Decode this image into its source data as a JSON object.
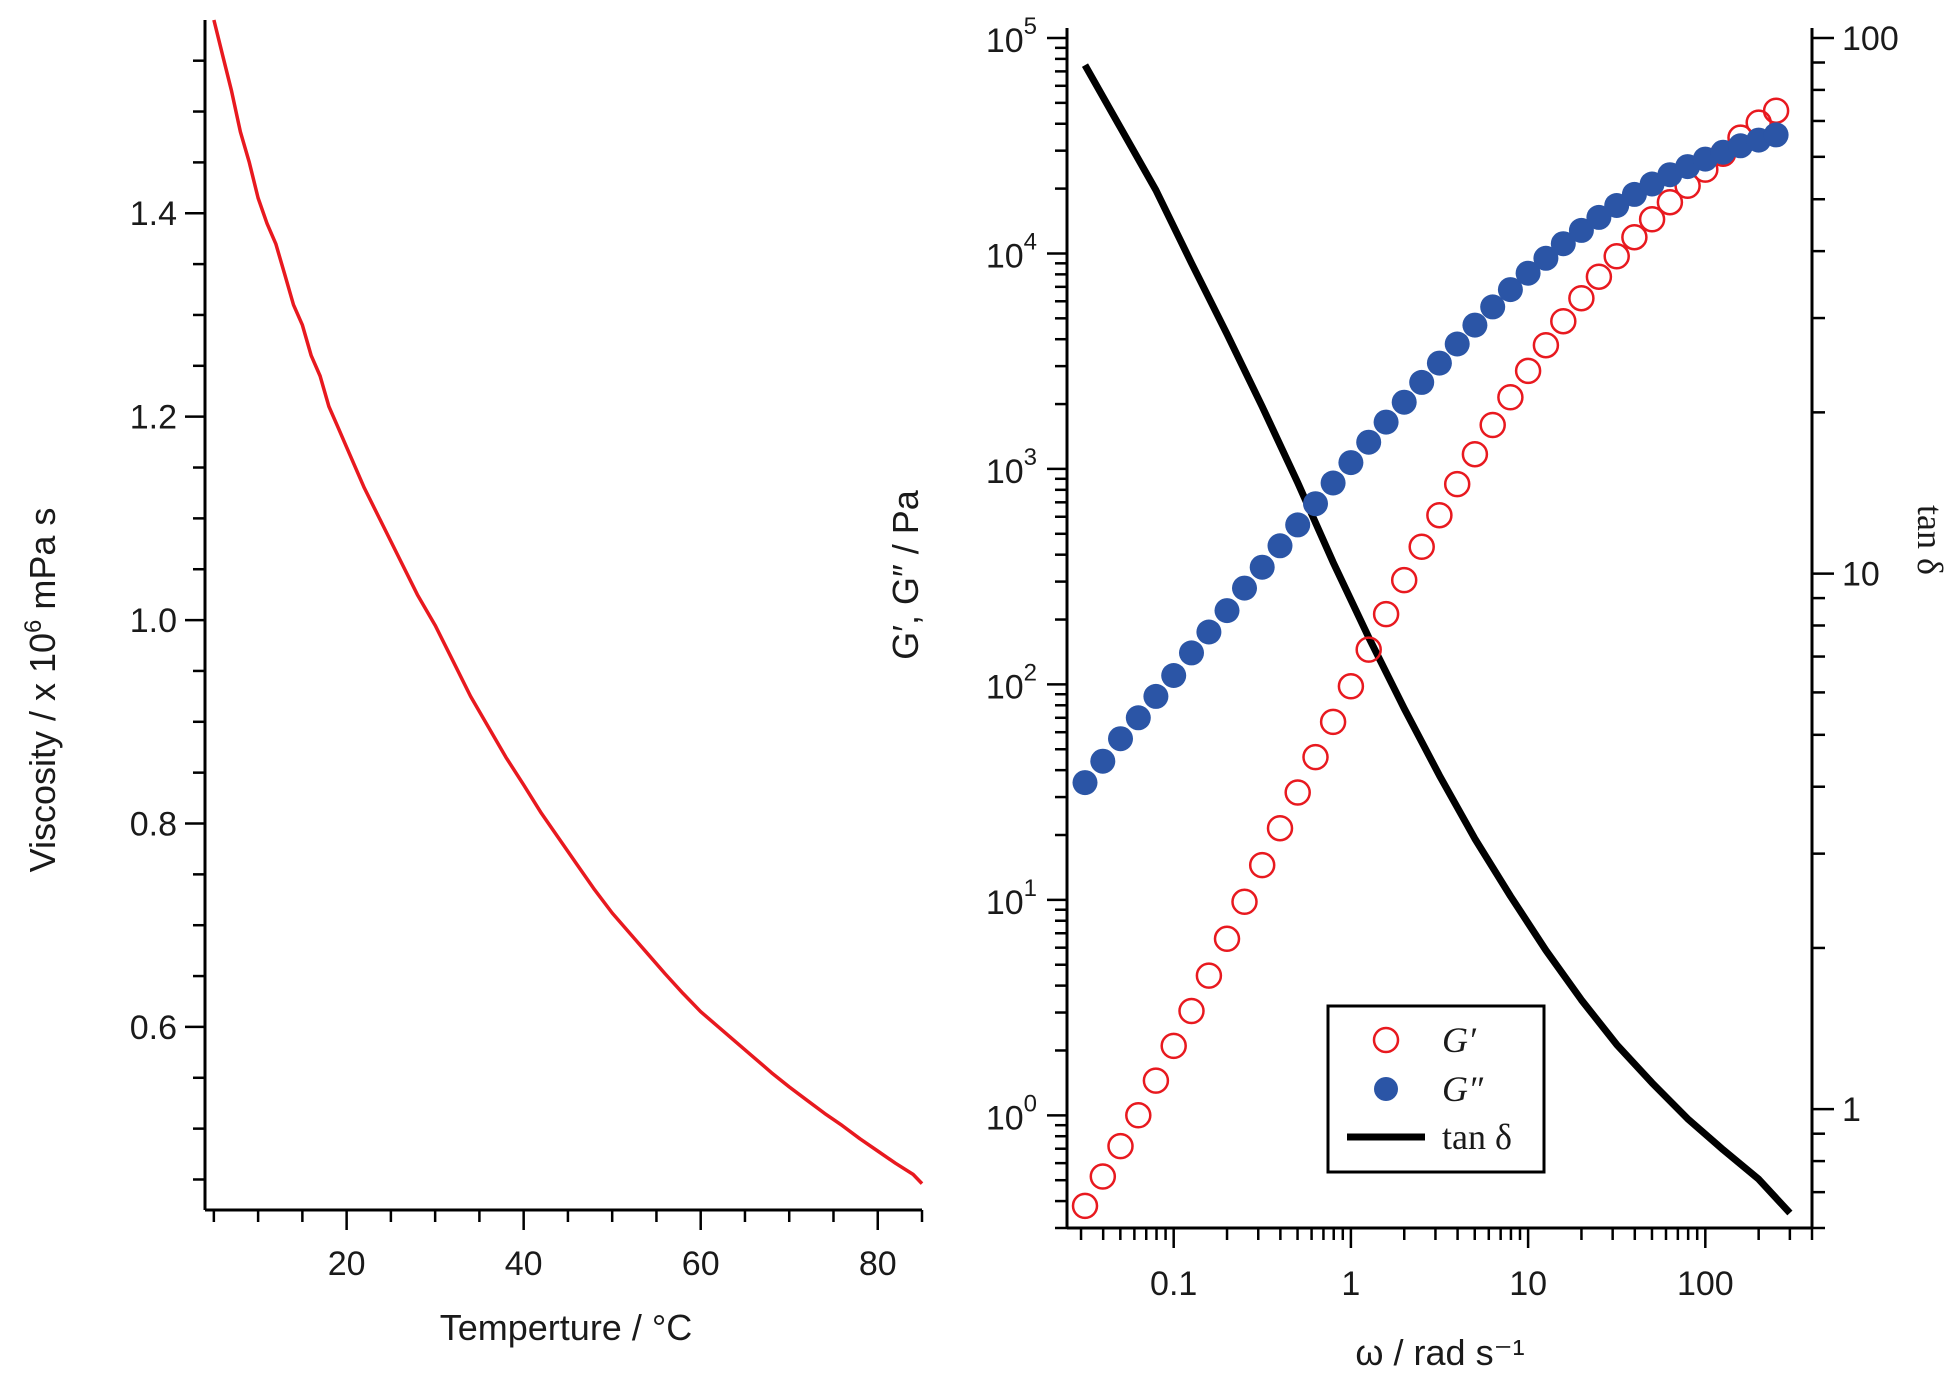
{
  "chart_data": [
    {
      "type": "line",
      "xlabel": "Temperture / °C",
      "ylabel_parts": [
        "Viscosity / x 10",
        "6",
        " mPa s"
      ],
      "xlim": [
        4,
        85
      ],
      "ylim": [
        0.42,
        1.59
      ],
      "xticks": [
        20,
        40,
        60,
        80
      ],
      "xminor_step": 5,
      "yticks": [
        0.6,
        0.8,
        1.0,
        1.2,
        1.4
      ],
      "ytick_labels": [
        "0.6",
        "0.8",
        "1.0",
        "1.2",
        "1.4"
      ],
      "color": "#e8191f",
      "x": [
        5,
        6,
        7,
        8,
        9,
        10,
        11,
        12,
        13,
        14,
        15,
        16,
        17,
        18,
        19,
        20,
        22,
        24,
        26,
        28,
        30,
        32,
        34,
        36,
        38,
        40,
        42,
        44,
        46,
        48,
        50,
        52,
        54,
        56,
        58,
        60,
        62,
        64,
        66,
        68,
        70,
        72,
        74,
        76,
        78,
        80,
        82,
        84,
        85
      ],
      "y": [
        1.59,
        1.555,
        1.52,
        1.48,
        1.45,
        1.415,
        1.39,
        1.37,
        1.34,
        1.31,
        1.29,
        1.26,
        1.24,
        1.21,
        1.19,
        1.17,
        1.13,
        1.095,
        1.06,
        1.025,
        0.995,
        0.96,
        0.925,
        0.895,
        0.865,
        0.838,
        0.81,
        0.785,
        0.76,
        0.735,
        0.712,
        0.692,
        0.672,
        0.652,
        0.633,
        0.615,
        0.6,
        0.585,
        0.57,
        0.555,
        0.541,
        0.528,
        0.515,
        0.503,
        0.49,
        0.478,
        0.466,
        0.455,
        0.446
      ]
    },
    {
      "type": "scatter",
      "xscale": "log",
      "yscale": "log",
      "xlabel": "ω / rad s⁻¹",
      "ylabel": "G′, G″ / Pa",
      "y2label": "tan δ",
      "xlim": [
        0.025,
        400
      ],
      "ylim": [
        0.3,
        100000
      ],
      "y2lim": [
        0.6,
        100
      ],
      "xticks": [
        0.1,
        1,
        10,
        100
      ],
      "xtick_labels": [
        "0.1",
        "1",
        "10",
        "100"
      ],
      "yticks": [
        1,
        10,
        100,
        1000,
        10000,
        100000
      ],
      "ytick_bases": [
        "10",
        "10",
        "10",
        "10",
        "10",
        "10"
      ],
      "ytick_exps": [
        "0",
        "1",
        "2",
        "3",
        "4",
        "5"
      ],
      "y2ticks": [
        1,
        10,
        100
      ],
      "y2tick_labels": [
        "1",
        "10",
        "100"
      ],
      "x": [
        0.0316,
        0.0398,
        0.0501,
        0.0631,
        0.0794,
        0.1,
        0.126,
        0.158,
        0.2,
        0.251,
        0.316,
        0.398,
        0.501,
        0.631,
        0.794,
        1.0,
        1.26,
        1.58,
        2.0,
        2.51,
        3.16,
        3.98,
        5.01,
        6.31,
        7.94,
        10.0,
        12.6,
        15.8,
        20.0,
        25.1,
        31.6,
        39.8,
        50.1,
        63.1,
        79.4,
        100,
        126,
        158,
        200,
        251
      ],
      "series": [
        {
          "name": "G′",
          "marker": "open-circle",
          "color": "#e8191f",
          "values": [
            0.38,
            0.52,
            0.72,
            1.0,
            1.45,
            2.1,
            3.05,
            4.45,
            6.6,
            9.8,
            14.5,
            21.5,
            31.5,
            46,
            67,
            98,
            145,
            212,
            305,
            435,
            610,
            850,
            1170,
            1600,
            2150,
            2850,
            3750,
            4850,
            6200,
            7800,
            9700,
            11900,
            14400,
            17300,
            20600,
            24500,
            29000,
            34500,
            40500,
            46000
          ]
        },
        {
          "name": "G″",
          "marker": "filled-circle",
          "color": "#2b55a6",
          "values": [
            35,
            44,
            56,
            70,
            88,
            110,
            140,
            175,
            220,
            280,
            350,
            440,
            550,
            690,
            860,
            1070,
            1330,
            1650,
            2040,
            2520,
            3100,
            3800,
            4650,
            5650,
            6800,
            8100,
            9500,
            11100,
            12800,
            14700,
            16700,
            18800,
            21000,
            23200,
            25300,
            27400,
            29500,
            31600,
            33600,
            35500
          ]
        },
        {
          "name": "tan δ",
          "type": "line",
          "axis": "y2",
          "color": "#000000",
          "x": [
            0.0316,
            0.0501,
            0.0794,
            0.126,
            0.2,
            0.316,
            0.5,
            0.794,
            1.26,
            2.0,
            3.16,
            5.0,
            7.94,
            12.6,
            20,
            31.6,
            50,
            79.4,
            126,
            200,
            300
          ],
          "values": [
            89,
            68,
            52,
            38,
            28,
            20.5,
            14.8,
            10.5,
            7.6,
            5.6,
            4.2,
            3.2,
            2.5,
            1.98,
            1.6,
            1.32,
            1.12,
            0.96,
            0.84,
            0.74,
            0.64
          ]
        }
      ],
      "legend": {
        "position": "bottom-center"
      }
    }
  ]
}
